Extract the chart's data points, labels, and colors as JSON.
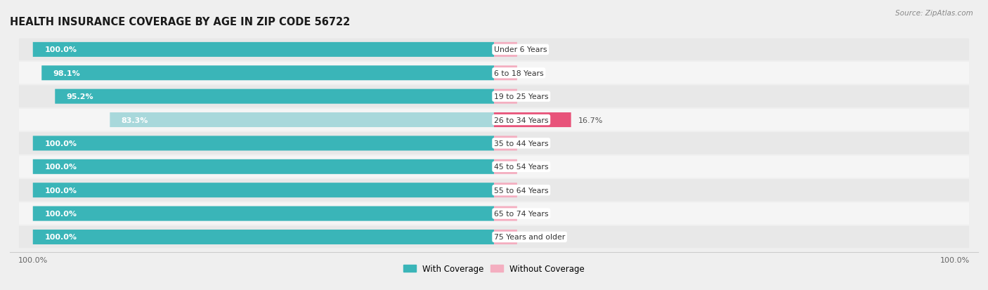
{
  "title": "HEALTH INSURANCE COVERAGE BY AGE IN ZIP CODE 56722",
  "source": "Source: ZipAtlas.com",
  "categories": [
    "Under 6 Years",
    "6 to 18 Years",
    "19 to 25 Years",
    "26 to 34 Years",
    "35 to 44 Years",
    "45 to 54 Years",
    "55 to 64 Years",
    "65 to 74 Years",
    "75 Years and older"
  ],
  "with_coverage": [
    100.0,
    98.1,
    95.2,
    83.3,
    100.0,
    100.0,
    100.0,
    100.0,
    100.0
  ],
  "without_coverage": [
    0.0,
    1.9,
    4.8,
    16.7,
    0.0,
    0.0,
    0.0,
    0.0,
    0.0
  ],
  "color_with": "#3ab5b8",
  "color_with_light": "#a8d8db",
  "color_without": "#f4aec0",
  "color_without_dark": "#e8537a",
  "bg_color": "#efefef",
  "row_color_odd": "#e8e8e8",
  "row_color_even": "#f5f5f5",
  "title_fontsize": 10.5,
  "label_fontsize": 8.0,
  "bar_height": 0.6,
  "min_without_bar": 5.0,
  "xlim_left": -105,
  "xlim_right": 105
}
